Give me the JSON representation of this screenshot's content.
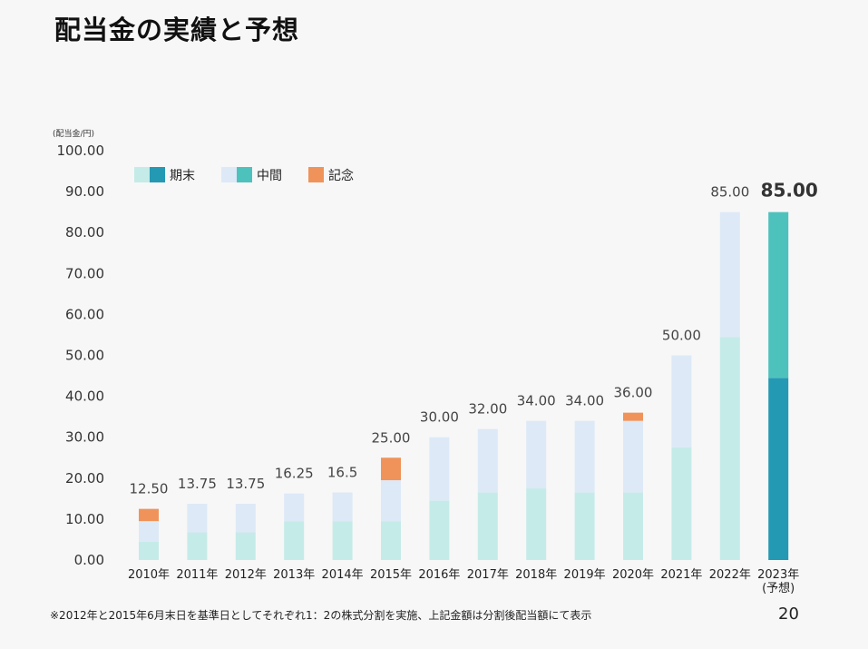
{
  "page": {
    "title": "配当金の実績と予想",
    "footnote": "※2012年と2015年6月末日を基準日としてそれぞれ1：2の株式分割を実施、上記金額は分割後配当額にて表示",
    "page_number": "20"
  },
  "colors": {
    "final_actual": "#c5ebe8",
    "interim_actual": "#dde9f7",
    "commemorative": "#f0935a",
    "final_forecast": "#2499b3",
    "interim_forecast": "#4dc2bc"
  },
  "chart_data": {
    "type": "bar",
    "stacked": true,
    "unit_label": "(配当金/円)",
    "ylim": [
      0,
      100
    ],
    "yticks": [
      "0.00",
      "10.00",
      "20.00",
      "30.00",
      "40.00",
      "50.00",
      "60.00",
      "70.00",
      "80.00",
      "90.00",
      "100.00"
    ],
    "categories": [
      "2010年",
      "2011年",
      "2012年",
      "2013年",
      "2014年",
      "2015年",
      "2016年",
      "2017年",
      "2018年",
      "2019年",
      "2020年",
      "2021年",
      "2022年",
      "2023年"
    ],
    "category_sublabels": [
      "",
      "",
      "",
      "",
      "",
      "",
      "",
      "",
      "",
      "",
      "",
      "",
      "",
      "(予想)"
    ],
    "legend": [
      {
        "label": "期末",
        "colors": [
          "#c5ebe8",
          "#2499b3"
        ]
      },
      {
        "label": "中間",
        "colors": [
          "#dde9f7",
          "#4dc2bc"
        ]
      },
      {
        "label": "記念",
        "colors": [
          "#f0935a"
        ]
      }
    ],
    "legend_position": "top-left",
    "series": [
      {
        "name": "期末",
        "values": [
          4.5,
          6.75,
          6.75,
          9.5,
          9.5,
          9.5,
          14.5,
          16.5,
          17.5,
          16.5,
          16.5,
          27.5,
          54.5,
          44.5
        ]
      },
      {
        "name": "中間",
        "values": [
          5.0,
          7.0,
          7.0,
          6.75,
          7.0,
          10.0,
          15.5,
          15.5,
          16.5,
          17.5,
          17.5,
          22.5,
          30.5,
          40.5
        ]
      },
      {
        "name": "記念",
        "values": [
          3.0,
          0,
          0,
          0,
          0,
          5.5,
          0,
          0,
          0,
          0,
          2.0,
          0,
          0,
          0
        ]
      }
    ],
    "totals": [
      "12.50",
      "13.75",
      "13.75",
      "16.25",
      "16.5",
      "25.00",
      "30.00",
      "32.00",
      "34.00",
      "34.00",
      "36.00",
      "50.00",
      "85.00",
      "85.00"
    ],
    "forecast_index": 13,
    "grid": false
  }
}
